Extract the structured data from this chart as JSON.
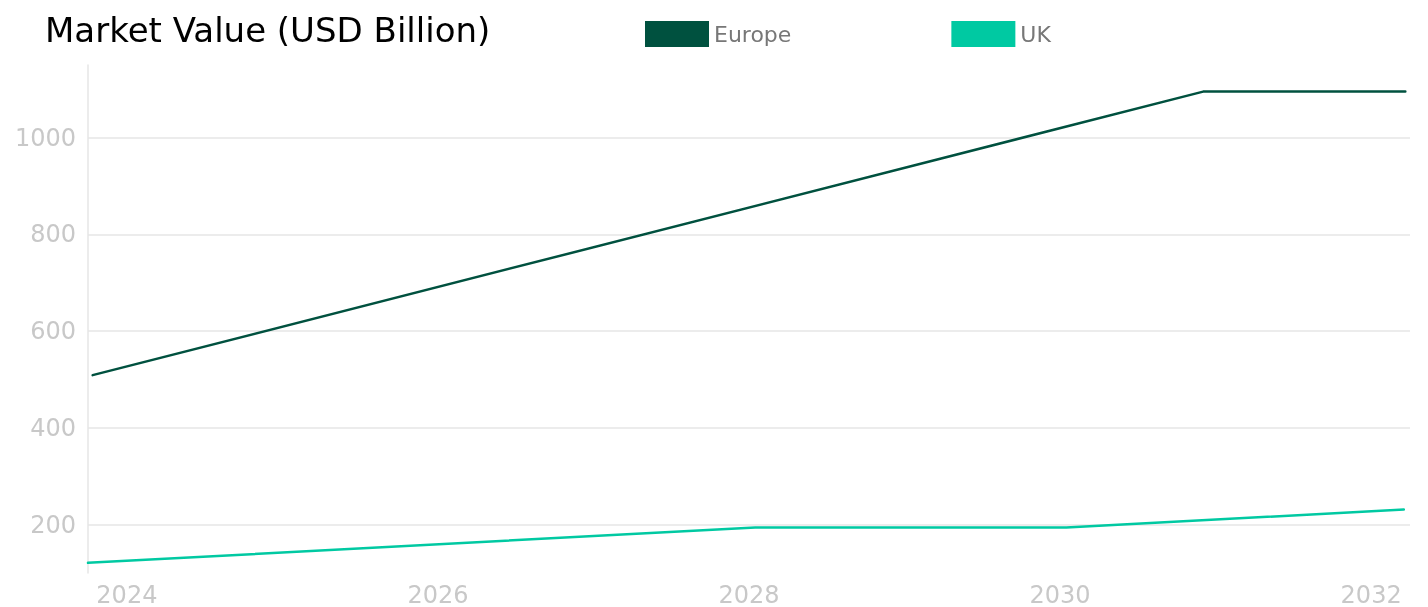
{
  "chart_data": {
    "type": "line",
    "title": "Market Value (USD Billion)",
    "series": [
      {
        "name": "Europe",
        "color": "#00513f",
        "x": [
          2023.78,
          2030.92,
          2032.22
        ],
        "values": [
          509,
          1095,
          1095
        ]
      },
      {
        "name": "UK",
        "color": "#00c9a2",
        "x": [
          2023.75,
          2028.04,
          2030.04,
          2032.21
        ],
        "values": [
          121,
          194,
          194,
          231
        ]
      }
    ],
    "xlim": [
      2023.75,
      2032.25
    ],
    "xticks": [
      2024,
      2026,
      2028,
      2030,
      2032
    ],
    "ylim": [
      100,
      1150
    ],
    "yticks": [
      200,
      400,
      600,
      800,
      {
        "value": 1000,
        "label": "1000"
      }
    ],
    "grid": "y",
    "legend": "top",
    "marker": "none",
    "line_style": "solid"
  }
}
